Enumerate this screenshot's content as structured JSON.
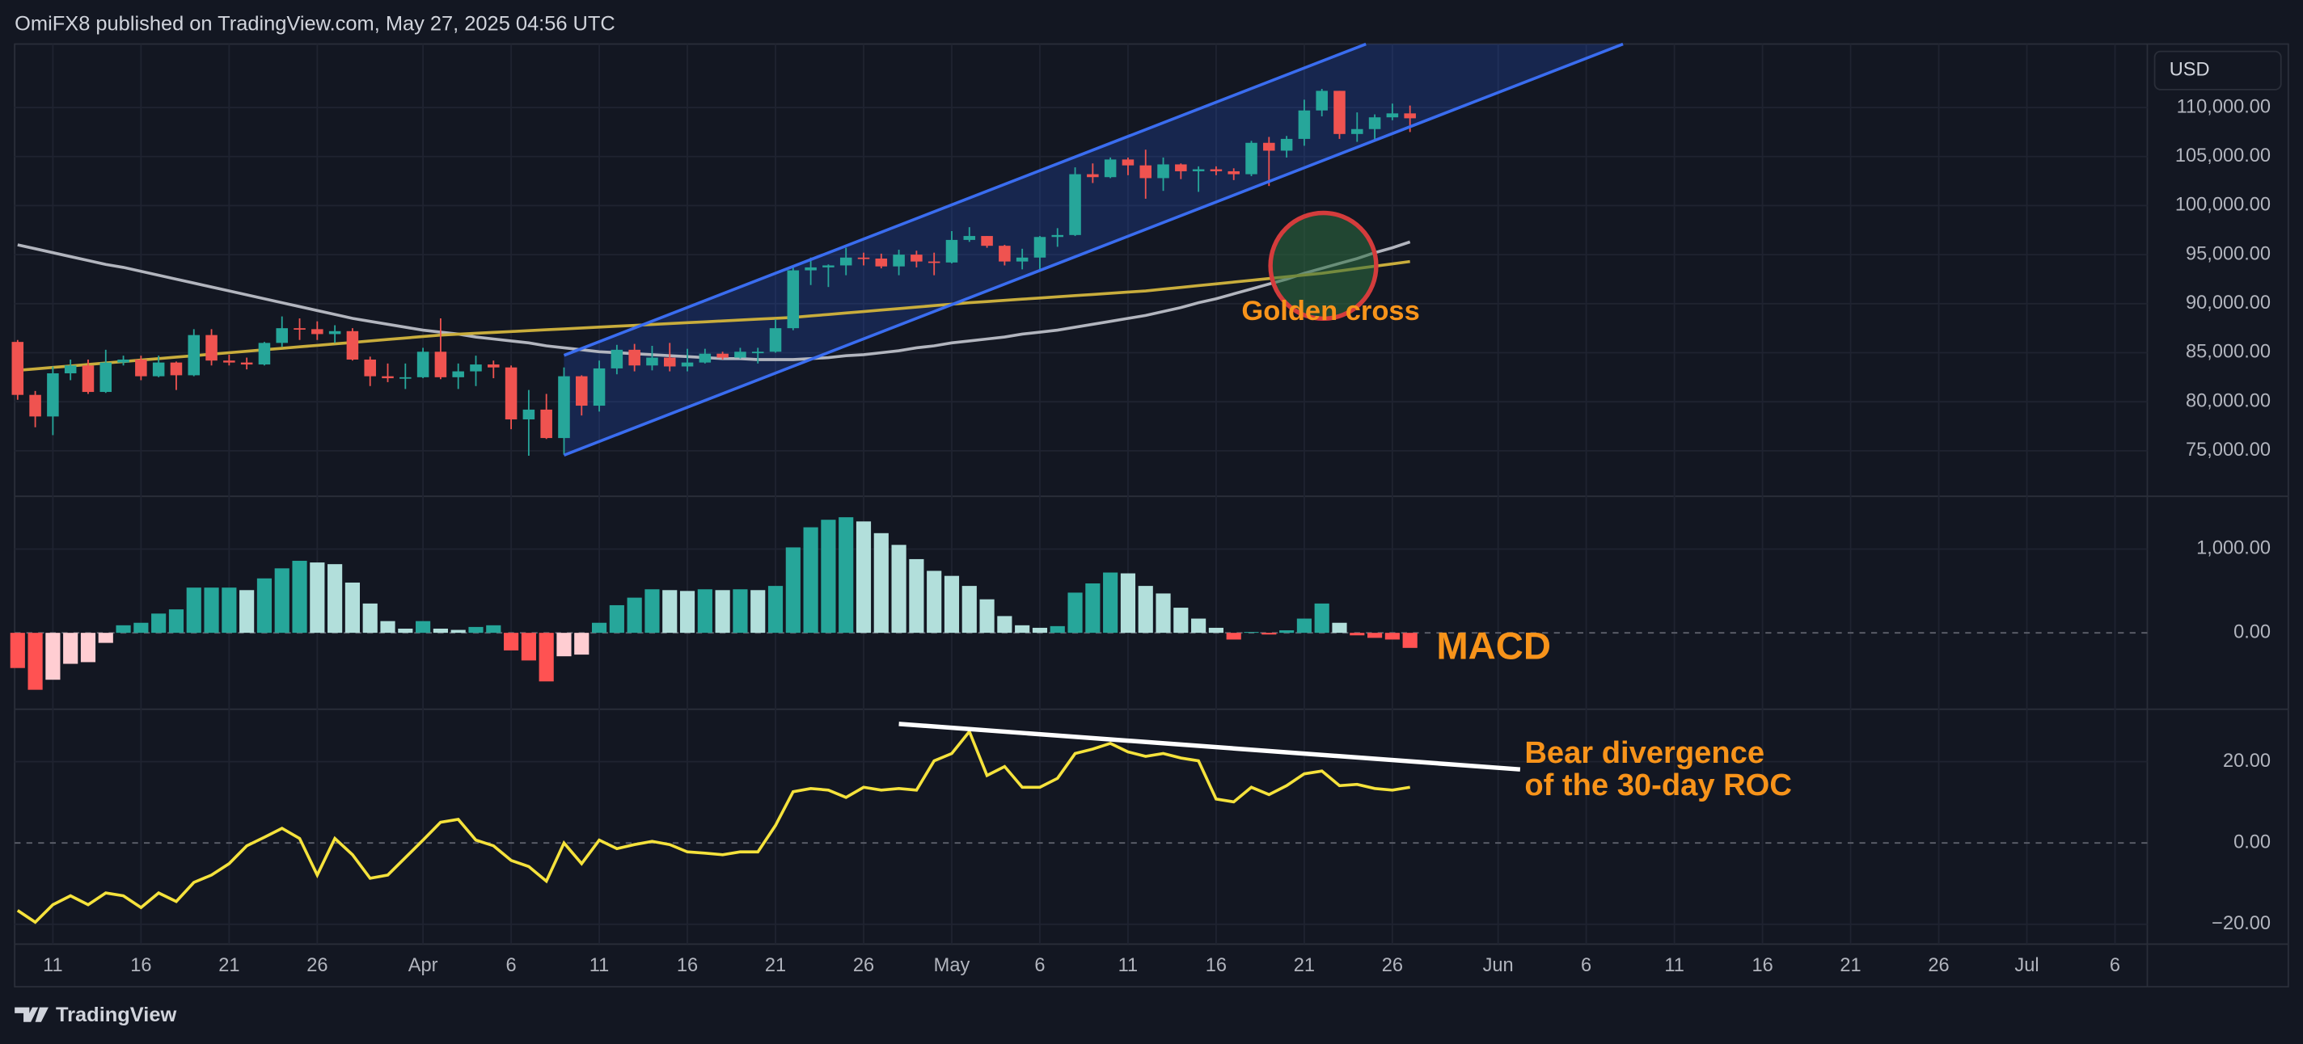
{
  "header": "OmiFX8 published on TradingView.com, May 27, 2025 04:56 UTC",
  "footer": "TradingView",
  "chart_data": [
    {
      "type": "candlestick",
      "currency": "USD",
      "categories": [
        null,
        null,
        "11",
        null,
        null,
        null,
        null,
        "16",
        null,
        null,
        null,
        null,
        "21",
        null,
        null,
        null,
        null,
        "26",
        null,
        null,
        null,
        null,
        null,
        "Apr",
        null,
        null,
        null,
        null,
        "6",
        null,
        null,
        null,
        null,
        "11",
        null,
        null,
        null,
        null,
        "16",
        null,
        null,
        null,
        null,
        "21",
        null,
        null,
        null,
        null,
        "26",
        null,
        null,
        null,
        null,
        "May",
        null,
        null,
        null,
        null,
        "6",
        null,
        null,
        null,
        null,
        "11",
        null,
        null,
        null,
        null,
        "16",
        null,
        null,
        null,
        null,
        "21",
        null,
        null,
        null,
        null,
        "26",
        null,
        null,
        null,
        null,
        null,
        "Jun",
        null,
        null,
        null,
        null,
        "6",
        null,
        null,
        null,
        null,
        "11",
        null,
        null,
        null,
        null,
        "16",
        null,
        null,
        null,
        null,
        "21",
        null,
        null,
        null,
        null,
        "26",
        null,
        null,
        null,
        null,
        "Jul",
        null,
        null,
        null,
        null,
        "6",
        null
      ],
      "open": [
        86100,
        80700,
        78500,
        82900,
        83700,
        81000,
        84000,
        84300,
        82600,
        84000,
        82700,
        86800,
        84200,
        84000,
        83800,
        86000,
        87500,
        87400,
        86900,
        87200,
        84300,
        82600,
        82400,
        82500,
        85100,
        82500,
        83100,
        83800,
        83500,
        78200,
        79200,
        76300,
        82600,
        79600,
        83400,
        85300,
        83700,
        84500,
        83600,
        84000,
        84900,
        84500,
        85100,
        85100,
        87500,
        93400,
        93700,
        93900,
        94700,
        94600,
        93800,
        95000,
        94300,
        94200,
        96500,
        96900,
        95900,
        94300,
        94700,
        96800,
        97000,
        103200,
        102900,
        104700,
        104100,
        102800,
        104200,
        103500,
        103700,
        103500,
        103200,
        106400,
        105600,
        106800,
        109700,
        111700,
        107300,
        107800,
        109000,
        109400,
        null,
        null,
        null,
        null,
        null,
        null,
        null,
        null,
        null,
        null,
        null,
        null,
        null,
        null,
        null,
        null,
        null,
        null,
        null,
        null,
        null,
        null,
        null,
        null,
        null,
        null,
        null,
        null,
        null,
        null,
        null,
        null,
        null,
        null,
        null,
        null,
        null,
        null,
        null,
        null,
        null
      ],
      "high": [
        86300,
        81100,
        83600,
        84300,
        84300,
        85300,
        84700,
        84700,
        84700,
        84100,
        87400,
        87400,
        84800,
        84500,
        86100,
        88700,
        88500,
        88200,
        87800,
        87500,
        84600,
        83900,
        83900,
        85500,
        88500,
        83900,
        84700,
        84200,
        83700,
        81200,
        80800,
        83500,
        82700,
        84200,
        85800,
        85900,
        85700,
        86000,
        85400,
        85400,
        85100,
        85500,
        85500,
        88400,
        93800,
        94700,
        94000,
        95700,
        95200,
        95100,
        95500,
        95400,
        95200,
        97400,
        97800,
        96900,
        96000,
        95600,
        96900,
        97700,
        103900,
        104300,
        104900,
        104900,
        105700,
        104900,
        104300,
        104000,
        104000,
        103800,
        106600,
        107000,
        107100,
        110800,
        111900,
        111700,
        109500,
        109300,
        110400,
        110200,
        null,
        null,
        null,
        null,
        null,
        null,
        null,
        null,
        null,
        null,
        null,
        null,
        null,
        null,
        null,
        null,
        null,
        null,
        null,
        null,
        null,
        null,
        null,
        null,
        null,
        null,
        null,
        null,
        null,
        null,
        null,
        null,
        null,
        null,
        null,
        null,
        null,
        null,
        null,
        null,
        null
      ],
      "low": [
        80200,
        77400,
        76600,
        82200,
        80800,
        80900,
        83700,
        82200,
        82500,
        81200,
        82600,
        83700,
        83700,
        83300,
        83700,
        85600,
        86300,
        86300,
        86000,
        84200,
        81600,
        82000,
        81300,
        82400,
        82300,
        81300,
        81600,
        82400,
        77200,
        74500,
        76200,
        74600,
        78600,
        79000,
        82800,
        83100,
        83200,
        83100,
        83100,
        83900,
        84300,
        84400,
        83900,
        85000,
        87300,
        91900,
        91700,
        92900,
        93900,
        93600,
        92900,
        93700,
        92900,
        94100,
        96300,
        95700,
        93900,
        93500,
        93400,
        95800,
        96900,
        102300,
        102800,
        103100,
        100700,
        101500,
        102700,
        101400,
        103100,
        102600,
        103000,
        102000,
        104900,
        106100,
        109100,
        106800,
        106500,
        106700,
        108700,
        107500,
        null,
        null,
        null,
        null,
        null,
        null,
        null,
        null,
        null,
        null,
        null,
        null,
        null,
        null,
        null,
        null,
        null,
        null,
        null,
        null,
        null,
        null,
        null,
        null,
        null,
        null,
        null,
        null,
        null,
        null,
        null,
        null,
        null,
        null,
        null,
        null,
        null,
        null,
        null,
        null,
        null
      ],
      "close": [
        80700,
        78500,
        82900,
        83700,
        81000,
        84000,
        84300,
        82600,
        84000,
        82700,
        86800,
        84200,
        84000,
        83800,
        86000,
        87500,
        87400,
        86900,
        87200,
        84300,
        82600,
        82400,
        82500,
        85100,
        82500,
        83100,
        83800,
        83500,
        78200,
        79200,
        76300,
        82600,
        79600,
        83400,
        85300,
        83700,
        84500,
        83600,
        84000,
        84900,
        84500,
        85100,
        85100,
        87500,
        93400,
        93700,
        93900,
        94700,
        94600,
        93800,
        95000,
        94300,
        94200,
        96500,
        96900,
        95900,
        94300,
        94700,
        96800,
        97000,
        103200,
        102900,
        104700,
        104100,
        102800,
        104200,
        103500,
        103700,
        103500,
        103200,
        106400,
        105600,
        106800,
        109700,
        111700,
        107300,
        107800,
        109000,
        109400,
        108900,
        null,
        null,
        null,
        null,
        null,
        null,
        null,
        null,
        null,
        null,
        null,
        null,
        null,
        null,
        null,
        null,
        null,
        null,
        null,
        null,
        null,
        null,
        null,
        null,
        null,
        null,
        null,
        null,
        null,
        null,
        null,
        null,
        null,
        null,
        null,
        null,
        null,
        null,
        null,
        null,
        null
      ],
      "up_color": "#26a69a",
      "down_color": "#ef5350",
      "overlays": [
        {
          "color": "#b2b5be",
          "values": [
            96000,
            95600,
            95200,
            94800,
            94400,
            94000,
            93700,
            93300,
            92900,
            92500,
            92100,
            91700,
            91300,
            90900,
            90500,
            90100,
            89700,
            89300,
            88900,
            88500,
            88200,
            87900,
            87600,
            87300,
            87100,
            86900,
            86600,
            86400,
            86200,
            86000,
            85700,
            85500,
            85300,
            85100,
            85000,
            84900,
            84800,
            84700,
            84600,
            84500,
            84400,
            84400,
            84300,
            84300,
            84300,
            84400,
            84500,
            84700,
            84800,
            85000,
            85200,
            85500,
            85700,
            86000,
            86200,
            86400,
            86600,
            86900,
            87100,
            87300,
            87600,
            87900,
            88200,
            88500,
            88800,
            89200,
            89600,
            90100,
            90500,
            91000,
            91500,
            92000,
            92500,
            93100,
            93600,
            94100,
            94600,
            95200,
            95700,
            96300,
            null,
            null,
            null,
            null,
            null,
            null,
            null,
            null,
            null,
            null,
            null,
            null,
            null,
            null,
            null,
            null,
            null,
            null,
            null,
            null,
            null,
            null,
            null,
            null,
            null,
            null,
            null,
            null,
            null,
            null,
            null,
            null,
            null,
            null,
            null,
            null,
            null,
            null,
            null,
            null,
            null
          ]
        },
        {
          "color": "#c9ad3c",
          "values": [
            83200,
            83350,
            83500,
            83650,
            83800,
            83950,
            84100,
            84250,
            84400,
            84550,
            84700,
            84850,
            85000,
            85150,
            85300,
            85450,
            85600,
            85750,
            85900,
            86050,
            86200,
            86350,
            86500,
            86650,
            86800,
            86890,
            86980,
            87070,
            87160,
            87250,
            87340,
            87430,
            87520,
            87610,
            87700,
            87790,
            87880,
            87970,
            88060,
            88150,
            88240,
            88330,
            88420,
            88510,
            88600,
            88750,
            88900,
            89050,
            89200,
            89350,
            89500,
            89650,
            89800,
            89950,
            90100,
            90220,
            90340,
            90460,
            90580,
            90700,
            90820,
            90940,
            91060,
            91180,
            91300,
            91480,
            91660,
            91840,
            92020,
            92200,
            92380,
            92560,
            92740,
            92920,
            93100,
            93340,
            93580,
            93820,
            94060,
            94300,
            null,
            null,
            null,
            null,
            null,
            null,
            null,
            null,
            null,
            null,
            null,
            null,
            null,
            null,
            null,
            null,
            null,
            null,
            null,
            null,
            null,
            null,
            null,
            null,
            null,
            null,
            null,
            null,
            null,
            null,
            null,
            null,
            null,
            null,
            null,
            null,
            null,
            null,
            null,
            null,
            null
          ]
        }
      ],
      "ylim": [
        70360,
        116470
      ],
      "yticks": [
        {
          "value": 75000,
          "label": "75,000.00"
        },
        {
          "value": 80000,
          "label": "80,000.00"
        },
        {
          "value": 85000,
          "label": "85,000.00"
        },
        {
          "value": 90000,
          "label": "90,000.00"
        },
        {
          "value": 95000,
          "label": "95,000.00"
        },
        {
          "value": 100000,
          "label": "100,000.00"
        },
        {
          "value": 105000,
          "label": "105,000.00"
        },
        {
          "value": 110000,
          "label": "110,000.00"
        }
      ],
      "grid": true,
      "annotations": [
        "Golden cross"
      ]
    },
    {
      "type": "bar",
      "values": [
        -420,
        -680,
        -560,
        -370,
        -350,
        -120,
        90,
        120,
        230,
        280,
        540,
        540,
        540,
        510,
        650,
        770,
        860,
        840,
        820,
        600,
        350,
        140,
        50,
        140,
        50,
        35,
        70,
        90,
        -210,
        -330,
        -580,
        -280,
        -260,
        120,
        330,
        420,
        520,
        510,
        500,
        520,
        510,
        520,
        510,
        560,
        1020,
        1260,
        1350,
        1380,
        1330,
        1190,
        1050,
        880,
        740,
        680,
        560,
        400,
        200,
        90,
        60,
        80,
        480,
        590,
        720,
        710,
        560,
        470,
        300,
        170,
        60,
        -80,
        10,
        -20,
        30,
        170,
        350,
        120,
        -30,
        -60,
        -80,
        -180,
        null,
        null,
        null,
        null,
        null,
        null,
        null,
        null,
        null,
        null,
        null,
        null,
        null,
        null,
        null,
        null,
        null,
        null,
        null,
        null,
        null,
        null,
        null,
        null,
        null,
        null,
        null,
        null,
        null,
        null,
        null,
        null,
        null,
        null,
        null,
        null,
        null,
        null,
        null,
        null,
        null
      ],
      "colors": {
        "rising_positive": "#26a69a",
        "falling_positive": "#b2dfdb",
        "rising_negative": "#ffcdd2",
        "falling_negative": "#ff5252"
      },
      "ylim": [
        -912,
        1630
      ],
      "yticks": [
        {
          "value": 0,
          "label": "0.00"
        },
        {
          "value": 1000,
          "label": "1,000.00"
        }
      ],
      "grid": true,
      "annotations": [
        "MACD"
      ]
    },
    {
      "type": "line",
      "color": "#f5e23c",
      "values": [
        -16.6,
        -19.5,
        -15.2,
        -13,
        -15.2,
        -12.3,
        -13,
        -15.9,
        -12.3,
        -14.4,
        -9.7,
        -7.9,
        -5.1,
        -0.7,
        1.4,
        3.6,
        1.1,
        -7.9,
        1.1,
        -2.9,
        -8.7,
        -7.9,
        -3.6,
        0.7,
        5.1,
        5.8,
        0.7,
        -0.7,
        -4.3,
        -5.8,
        -9.4,
        0,
        -5.1,
        0.7,
        -1.4,
        -0.4,
        0.4,
        -0.4,
        -2.2,
        -2.5,
        -2.9,
        -2.2,
        -2.2,
        4.3,
        12.6,
        13.4,
        13,
        11.2,
        13.7,
        13,
        13.4,
        13,
        20.2,
        22,
        27.4,
        16.6,
        18.8,
        13.7,
        13.7,
        15.9,
        22,
        23.1,
        24.5,
        22.4,
        21.3,
        22,
        20.9,
        20.2,
        10.8,
        10.1,
        13.7,
        11.9,
        14.1,
        17,
        17.7,
        14.1,
        14.4,
        13.4,
        13,
        13.7,
        null,
        null,
        null,
        null,
        null,
        null,
        null,
        null,
        null,
        null,
        null,
        null,
        null,
        null,
        null,
        null,
        null,
        null,
        null,
        null,
        null,
        null,
        null,
        null,
        null,
        null,
        null,
        null,
        null,
        null,
        null,
        null,
        null,
        null,
        null,
        null,
        null,
        null,
        null,
        null,
        null
      ],
      "ylim": [
        -24.9,
        32.9
      ],
      "yticks": [
        {
          "value": -20,
          "label": "−20.00"
        },
        {
          "value": 0,
          "label": "0.00"
        },
        {
          "value": 20,
          "label": "20.00"
        }
      ],
      "grid": true,
      "annotations": [
        "Bear divergence",
        "of the 30-day ROC"
      ]
    }
  ]
}
